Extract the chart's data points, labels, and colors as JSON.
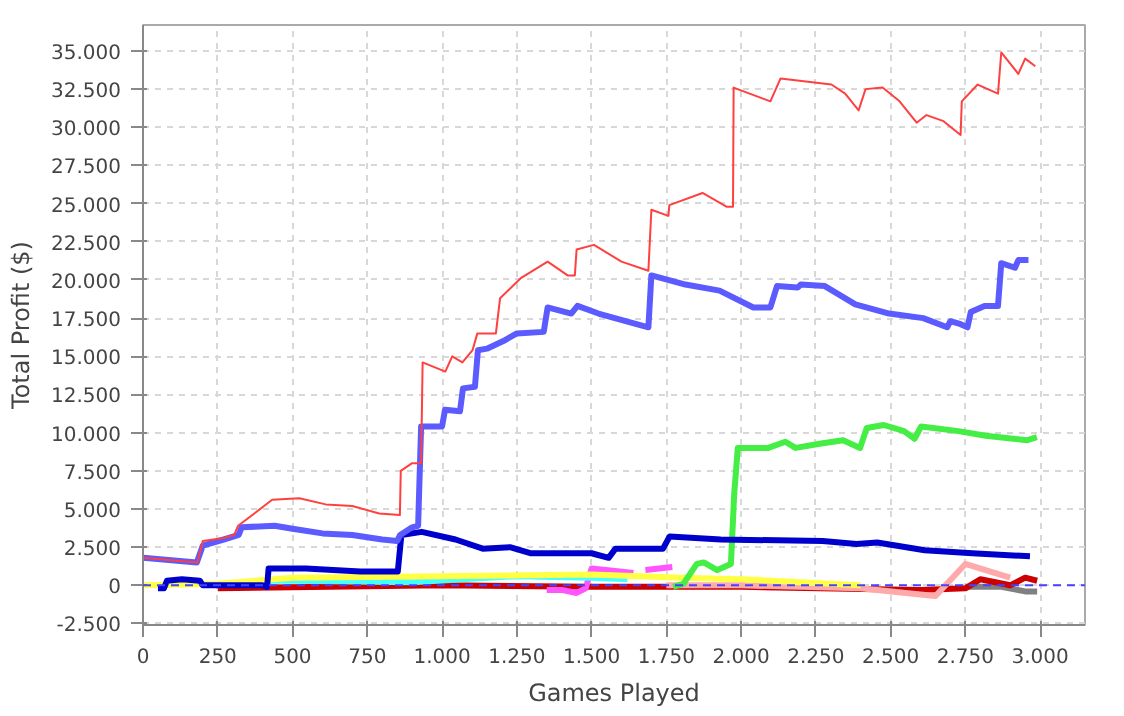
{
  "chart_data": {
    "type": "line",
    "xlabel": "Games Played",
    "ylabel": "Total Profit ($)",
    "xlim": [
      0,
      3150
    ],
    "ylim": [
      -2600,
      36700
    ],
    "xticks": [
      0,
      250,
      500,
      750,
      {
        "value": 1000,
        "label": "1.000"
      },
      {
        "value": 1250,
        "label": "1.250"
      },
      {
        "value": 1500,
        "label": "1.500"
      },
      {
        "value": 1750,
        "label": "1.750"
      },
      {
        "value": 2000,
        "label": "2.000"
      },
      {
        "value": 2250,
        "label": "2.250"
      },
      {
        "value": 2500,
        "label": "2.500"
      },
      {
        "value": 2750,
        "label": "2.750"
      },
      {
        "value": 3000,
        "label": "3.000"
      }
    ],
    "yticks": [
      {
        "value": -2500,
        "label": "-2.500"
      },
      0,
      {
        "value": 2500,
        "label": "2.500"
      },
      {
        "value": 5000,
        "label": "5.000"
      },
      {
        "value": 7500,
        "label": "7.500"
      },
      {
        "value": 10000,
        "label": "10.000"
      },
      {
        "value": 12500,
        "label": "12.500"
      },
      {
        "value": 15000,
        "label": "15.000"
      },
      {
        "value": 17500,
        "label": "17.500"
      },
      {
        "value": 20000,
        "label": "20.000"
      },
      {
        "value": 22500,
        "label": "22.500"
      },
      {
        "value": 25000,
        "label": "25.000"
      },
      {
        "value": 27500,
        "label": "27.500"
      },
      {
        "value": 30000,
        "label": "30.000"
      },
      {
        "value": 32500,
        "label": "32.500"
      },
      {
        "value": 35000,
        "label": "35.000"
      }
    ],
    "grid": true,
    "marker": "none",
    "line_style": "solid",
    "ref_lines": [
      {
        "axis": "y",
        "value": 0,
        "color": "#4444ff",
        "line_style": "dashed"
      }
    ],
    "series": [
      {
        "color": "#ff4040",
        "x": [
          0,
          182,
          200,
          270,
          305,
          318,
          432,
          523,
          611,
          700,
          790,
          859,
          862,
          900,
          930,
          935,
          1011,
          1034,
          1068,
          1102,
          1118,
          1180,
          1194,
          1262,
          1353,
          1420,
          1444,
          1450,
          1508,
          1600,
          1690,
          1700,
          1757,
          1760,
          1871,
          1951,
          1973,
          1975,
          2098,
          2132,
          2302,
          2348,
          2393,
          2416,
          2473,
          2530,
          2587,
          2620,
          2677,
          2734,
          2738,
          2791,
          2859,
          2870,
          2927,
          2950,
          2984
        ],
        "values": [
          1800,
          1500,
          2900,
          3100,
          3300,
          3900,
          5600,
          5700,
          5300,
          5200,
          4700,
          4600,
          7500,
          8000,
          8000,
          14600,
          14000,
          15000,
          14600,
          15400,
          16500,
          16500,
          18800,
          20100,
          21200,
          20300,
          20300,
          22000,
          22300,
          21200,
          20600,
          24600,
          24200,
          24900,
          25700,
          24800,
          24800,
          32600,
          31700,
          33200,
          32800,
          32200,
          31100,
          32500,
          32600,
          31700,
          30300,
          30800,
          30400,
          29500,
          31700,
          32800,
          32200,
          34900,
          33500,
          34500,
          34000
        ]
      },
      {
        "color": "#5b5bff",
        "x": [
          0,
          180,
          200,
          270,
          320,
          330,
          440,
          500,
          600,
          700,
          800,
          850,
          860,
          900,
          920,
          930,
          1000,
          1010,
          1060,
          1070,
          1110,
          1120,
          1150,
          1205,
          1250,
          1340,
          1353,
          1432,
          1453,
          1523,
          1690,
          1700,
          1814,
          1928,
          2041,
          2098,
          2120,
          2189,
          2200,
          2280,
          2382,
          2495,
          2609,
          2689,
          2700,
          2734,
          2757,
          2768,
          2814,
          2859,
          2870,
          2916,
          2927,
          2961
        ],
        "values": [
          1800,
          1500,
          2600,
          3000,
          3300,
          3800,
          3900,
          3700,
          3400,
          3300,
          3000,
          2900,
          3300,
          3800,
          3900,
          10400,
          10400,
          11500,
          11400,
          12900,
          13000,
          15400,
          15500,
          16000,
          16500,
          16600,
          18200,
          17800,
          18300,
          17800,
          16900,
          20300,
          19700,
          19300,
          18200,
          18200,
          19600,
          19500,
          19700,
          19600,
          18400,
          17800,
          17500,
          16900,
          17300,
          17100,
          16900,
          17900,
          18300,
          18300,
          21100,
          20800,
          21300,
          21300
        ]
      },
      {
        "color": "#0000cc",
        "x": [
          50,
          70,
          80,
          130,
          190,
          200,
          400,
          415,
          420,
          545,
          727,
          852,
          864,
          932,
          1045,
          1136,
          1227,
          1295,
          1500,
          1557,
          1580,
          1739,
          1761,
          1932,
          2273,
          2386,
          2455,
          2614,
          2773,
          2966
        ],
        "values": [
          -200,
          -200,
          300,
          400,
          300,
          0,
          0,
          -100,
          1100,
          1100,
          900,
          900,
          3300,
          3500,
          3000,
          2400,
          2500,
          2100,
          2100,
          1800,
          2400,
          2400,
          3200,
          3000,
          2900,
          2700,
          2800,
          2300,
          2100,
          1900
        ]
      },
      {
        "color": "#44ee44",
        "x": [
          1773,
          1807,
          1852,
          1875,
          1920,
          1966,
          1977,
          1989,
          2091,
          2148,
          2182,
          2273,
          2341,
          2398,
          2420,
          2477,
          2545,
          2580,
          2602,
          2727,
          2818,
          2955,
          2989
        ],
        "values": [
          -100,
          100,
          1400,
          1500,
          1000,
          1400,
          6000,
          9000,
          9000,
          9400,
          9000,
          9300,
          9500,
          9000,
          10300,
          10500,
          10100,
          9600,
          10400,
          10100,
          9800,
          9500,
          9700
        ]
      },
      {
        "color": "#ffff44",
        "x": [
          0,
          250,
          500,
          1000,
          1500,
          1800,
          2000,
          2200,
          2400
        ],
        "values": [
          0,
          100,
          500,
          600,
          700,
          500,
          400,
          200,
          0
        ]
      },
      {
        "color": "#44ffff",
        "x": [
          250,
          400,
          500,
          900,
          1250,
          1500,
          1620
        ],
        "values": [
          0,
          300,
          300,
          200,
          600,
          500,
          400
        ]
      },
      {
        "color": "#ff55ff",
        "x": [
          1350,
          1400,
          1450,
          1480,
          1500,
          1640,
          1660,
          1680,
          1770
        ],
        "values": [
          -300,
          -300,
          -500,
          -200,
          1100,
          800,
          null,
          1000,
          1200
        ]
      },
      {
        "color": "#ffaaaa",
        "x": [
          1750,
          2000,
          2400,
          2550,
          2650,
          2750,
          2850,
          2900
        ],
        "values": [
          0,
          0,
          -200,
          -500,
          -700,
          1400,
          800,
          500
        ]
      },
      {
        "color": "#cc0000",
        "x": [
          250,
          1000,
          1500,
          2000,
          2600,
          2750,
          2800,
          2900,
          2950,
          2990
        ],
        "values": [
          -200,
          0,
          -100,
          -100,
          -300,
          -200,
          400,
          0,
          500,
          300
        ]
      },
      {
        "color": "#808080",
        "x": [
          2750,
          2870,
          2950,
          2990
        ],
        "values": [
          -100,
          -100,
          -400,
          -400
        ]
      }
    ]
  }
}
